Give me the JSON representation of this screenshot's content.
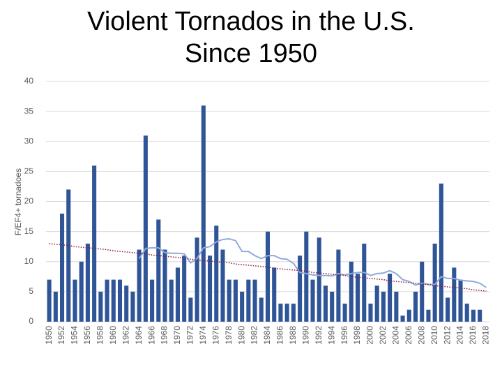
{
  "chart_data": {
    "type": "bar",
    "title": "Violent Tornados in the U.S. Since 1950",
    "y_label": "F/EF4+ tornadoes",
    "categories": [
      "1950",
      null,
      "1952",
      null,
      "1954",
      null,
      "1956",
      null,
      "1958",
      null,
      "1960",
      null,
      "1962",
      null,
      "1964",
      null,
      "1966",
      null,
      "1968",
      null,
      "1970",
      null,
      "1972",
      null,
      "1974",
      null,
      "1976",
      null,
      "1978",
      null,
      "1980",
      null,
      "1982",
      null,
      "1984",
      null,
      "1986",
      null,
      "1988",
      null,
      "1990",
      null,
      "1992",
      null,
      "1994",
      null,
      "1996",
      null,
      "1998",
      null,
      "2000",
      null,
      "2002",
      null,
      "2004",
      null,
      "2006",
      null,
      "2008",
      null,
      "2010",
      null,
      "2012",
      null,
      "2014",
      null,
      "2016",
      null,
      "2018"
    ],
    "series": [
      {
        "type": "bar",
        "color": "#2f5597",
        "values": [
          7,
          5,
          18,
          22,
          7,
          10,
          13,
          26,
          5,
          7,
          7,
          7,
          6,
          5,
          12,
          31,
          7,
          17,
          12,
          7,
          9,
          11,
          4,
          14,
          36,
          11,
          16,
          12,
          7,
          7,
          5,
          7,
          7,
          4,
          15,
          9,
          3,
          3,
          3,
          11,
          15,
          7,
          14,
          6,
          5,
          12,
          3,
          10,
          8,
          13,
          3,
          6,
          5,
          8,
          5,
          1,
          2,
          5,
          10,
          2,
          13,
          23,
          4,
          9,
          7,
          3,
          2,
          2,
          null
        ]
      },
      {
        "type": "line",
        "color": "#8faadc",
        "values": [
          null,
          null,
          null,
          null,
          null,
          null,
          null,
          null,
          null,
          null,
          null,
          null,
          null,
          null,
          10.5,
          12.2,
          12.3,
          12.3,
          11.5,
          11.4,
          11.4,
          11.3,
          9.8,
          10.5,
          12.3,
          12.5,
          13.3,
          13.7,
          13.8,
          13.5,
          11.7,
          11.7,
          11,
          10.5,
          11,
          11,
          10.5,
          10.4,
          9.7,
          8.2,
          8,
          7.8,
          7.7,
          7.7,
          7.6,
          8,
          7.8,
          8,
          8.2,
          8.2,
          7.7,
          8,
          8.1,
          8.5,
          8,
          7,
          6.7,
          6.1,
          6.4,
          6.2,
          6.2,
          7.5,
          7.2,
          7.2,
          6.9,
          6.8,
          6.7,
          6.4,
          5.7
        ]
      },
      {
        "type": "line",
        "dotted": true,
        "color": "#8b1a3a",
        "values": [
          13.0,
          12.9,
          12.8,
          12.7,
          12.5,
          12.4,
          12.3,
          12.2,
          12.1,
          12.0,
          11.8,
          11.7,
          11.6,
          11.5,
          11.4,
          11.3,
          11.1,
          11.0,
          10.9,
          10.8,
          10.7,
          10.6,
          10.4,
          10.3,
          10.2,
          10.1,
          10.0,
          9.9,
          9.8,
          9.6,
          9.5,
          9.4,
          9.3,
          9.2,
          9.1,
          8.9,
          8.8,
          8.7,
          8.6,
          8.5,
          8.4,
          8.2,
          8.1,
          8.0,
          7.9,
          7.8,
          7.7,
          7.5,
          7.4,
          7.3,
          7.2,
          7.1,
          7.0,
          6.8,
          6.7,
          6.6,
          6.5,
          6.4,
          6.3,
          6.2,
          6.0,
          5.9,
          5.8,
          5.7,
          5.6,
          5.5,
          5.3,
          5.2,
          5.1
        ]
      }
    ],
    "ylim": [
      0,
      40
    ],
    "yticks": [
      0,
      5,
      10,
      15,
      20,
      25,
      30,
      35,
      40
    ],
    "grid": true
  }
}
